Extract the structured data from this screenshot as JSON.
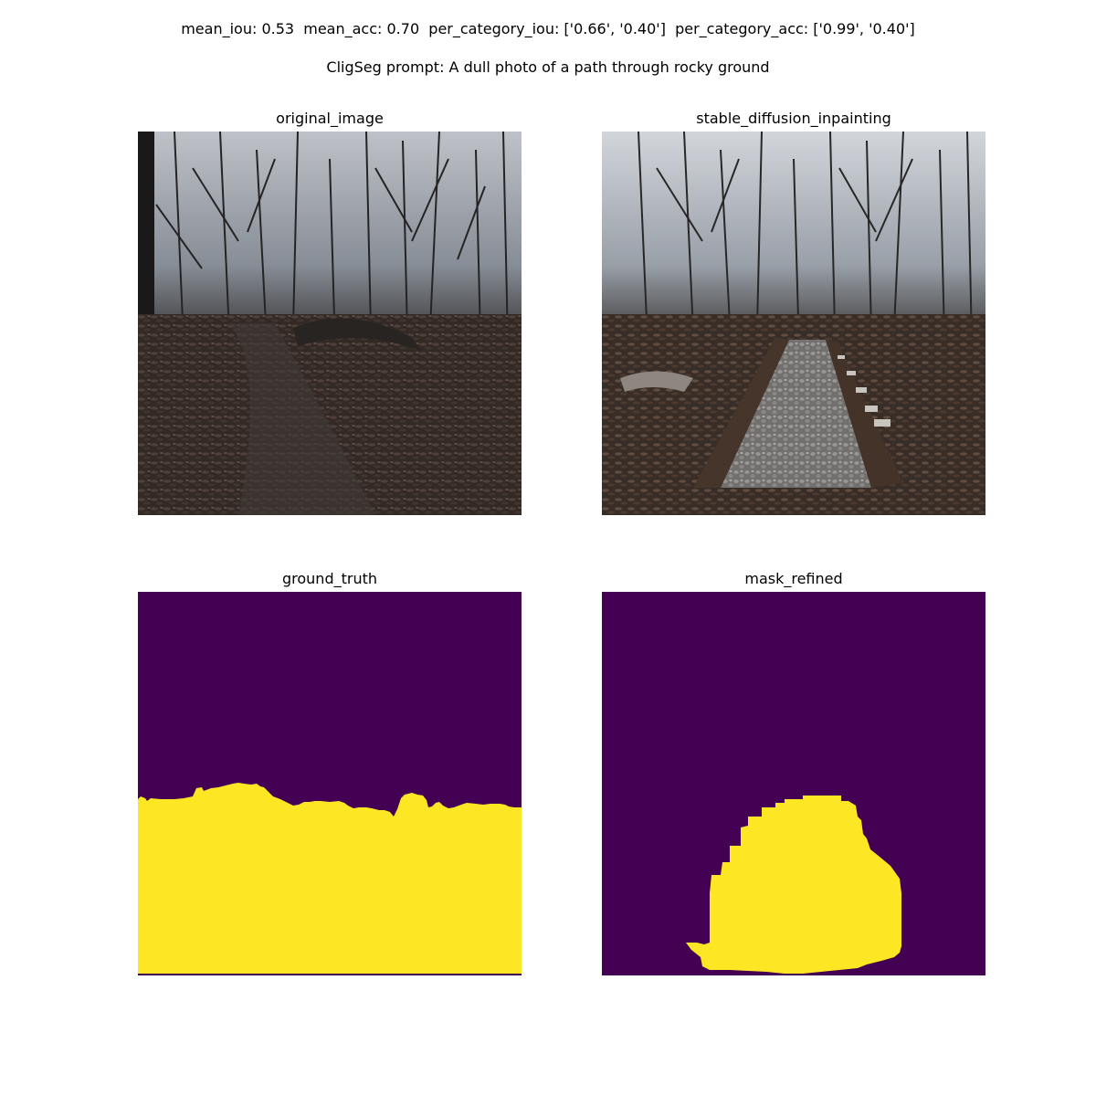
{
  "figure": {
    "metrics_line": "mean_iou: 0.53  mean_acc: 0.70  per_category_iou: ['0.66', '0.40']  per_category_acc: ['0.99', '0.40']",
    "prompt_line": "CligSeg prompt: A dull photo of a path through rocky ground"
  },
  "metrics": {
    "mean_iou": 0.53,
    "mean_acc": 0.7,
    "per_category_iou": [
      "0.66",
      "0.40"
    ],
    "per_category_acc": [
      "0.99",
      "0.40"
    ]
  },
  "panels": {
    "original": {
      "title": "original_image"
    },
    "inpaint": {
      "title": "stable_diffusion_inpainting"
    },
    "ground_truth": {
      "title": "ground_truth"
    },
    "mask": {
      "title": "mask_refined"
    }
  },
  "colors": {
    "mask_background": "#440154",
    "mask_foreground": "#fde725"
  }
}
